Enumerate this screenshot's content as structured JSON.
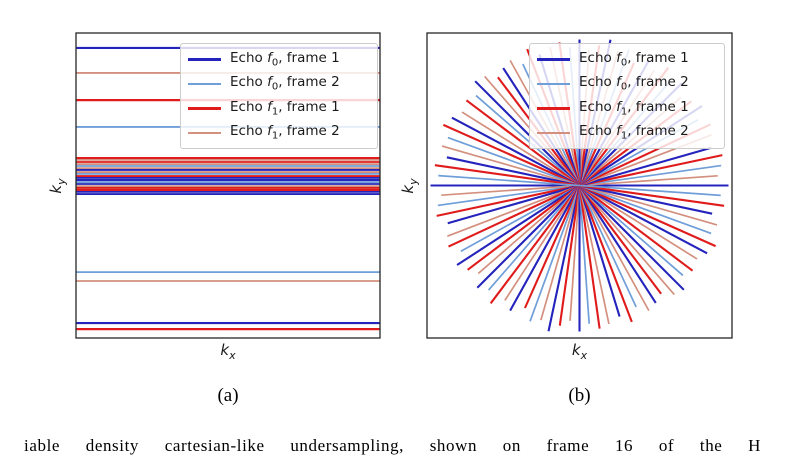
{
  "colors": {
    "echo0_frame1": "#2424bd",
    "echo0_frame2": "#6f9ed9",
    "echo1_frame1": "#e01b1b",
    "echo1_frame2": "#d4907e",
    "frame": "#262626"
  },
  "legend": {
    "entries": [
      {
        "prefix": "Echo ",
        "symbol": "f",
        "subscript": "0",
        "suffix": ", frame 1",
        "color_key": "echo0_frame1",
        "label_plain": "Echo f0, frame 1"
      },
      {
        "prefix": "Echo ",
        "symbol": "f",
        "subscript": "0",
        "suffix": ", frame 2",
        "color_key": "echo0_frame2",
        "label_plain": "Echo f0, frame 2"
      },
      {
        "prefix": "Echo ",
        "symbol": "f",
        "subscript": "1",
        "suffix": ", frame 1",
        "color_key": "echo1_frame1",
        "label_plain": "Echo f1, frame 1"
      },
      {
        "prefix": "Echo ",
        "symbol": "f",
        "subscript": "1",
        "suffix": ", frame 2",
        "color_key": "echo1_frame2",
        "label_plain": "Echo f1, frame 2"
      }
    ]
  },
  "panels": [
    {
      "caption": "(a)",
      "xlabel": {
        "base": "k",
        "sub": "x"
      },
      "ylabel": {
        "base": "k",
        "sub": "y"
      }
    },
    {
      "caption": "(b)",
      "xlabel": {
        "base": "k",
        "sub": "x"
      },
      "ylabel": {
        "base": "k",
        "sub": "y"
      }
    }
  ],
  "caption_fragment": "iable density cartesian-like undersampling, shown on frame 16 of the H",
  "chart_data": [
    {
      "type": "line",
      "panel": "(a)",
      "title": "",
      "xlabel": "kx",
      "ylabel": "ky",
      "description": "Variable-density Cartesian k-space sampling: horizontal phase-encode lines, densely packed near the ky center, for two echoes and two frames",
      "legend_position": "upper right",
      "grid": false,
      "lines": [
        {
          "y_frac": 0.049,
          "series": "echo0_frame1",
          "width": 2.2
        },
        {
          "y_frac": 0.131,
          "series": "echo1_frame2",
          "width": 1.8
        },
        {
          "y_frac": 0.22,
          "series": "echo1_frame1",
          "width": 2.2
        },
        {
          "y_frac": 0.308,
          "series": "echo0_frame2",
          "width": 1.8
        },
        {
          "y_frac": 0.41,
          "series": "echo1_frame1",
          "width": 2.2
        },
        {
          "y_frac": 0.416,
          "series": "echo1_frame2",
          "width": 1.8
        },
        {
          "y_frac": 0.423,
          "series": "echo1_frame1",
          "width": 1.8
        },
        {
          "y_frac": 0.43,
          "series": "echo1_frame2",
          "width": 1.8
        },
        {
          "y_frac": 0.436,
          "series": "echo0_frame2",
          "width": 1.8
        },
        {
          "y_frac": 0.443,
          "series": "echo1_frame2",
          "width": 1.8
        },
        {
          "y_frac": 0.449,
          "series": "echo0_frame1",
          "width": 1.8
        },
        {
          "y_frac": 0.456,
          "series": "echo1_frame2",
          "width": 1.8
        },
        {
          "y_frac": 0.462,
          "series": "echo0_frame2",
          "width": 1.8
        },
        {
          "y_frac": 0.469,
          "series": "echo1_frame1",
          "width": 1.8
        },
        {
          "y_frac": 0.475,
          "series": "echo0_frame1",
          "width": 1.8
        },
        {
          "y_frac": 0.482,
          "series": "echo0_frame1",
          "width": 2.2
        },
        {
          "y_frac": 0.489,
          "series": "echo0_frame2",
          "width": 1.8
        },
        {
          "y_frac": 0.495,
          "series": "echo0_frame1",
          "width": 1.8
        },
        {
          "y_frac": 0.502,
          "series": "echo1_frame2",
          "width": 1.8
        },
        {
          "y_frac": 0.508,
          "series": "echo1_frame1",
          "width": 1.8
        },
        {
          "y_frac": 0.515,
          "series": "echo1_frame1",
          "width": 2.2
        },
        {
          "y_frac": 0.521,
          "series": "echo0_frame1",
          "width": 1.8
        },
        {
          "y_frac": 0.528,
          "series": "echo0_frame1",
          "width": 1.8
        },
        {
          "y_frac": 0.784,
          "series": "echo0_frame2",
          "width": 1.8
        },
        {
          "y_frac": 0.813,
          "series": "echo1_frame2",
          "width": 1.8
        },
        {
          "y_frac": 0.951,
          "series": "echo0_frame1",
          "width": 2.2
        },
        {
          "y_frac": 0.971,
          "series": "echo1_frame1",
          "width": 2.2
        }
      ]
    },
    {
      "type": "line",
      "panel": "(b)",
      "title": "",
      "xlabel": "kx",
      "ylabel": "ky",
      "description": "Radial k-space sampling: spokes (diameters) through the k-space center at many angles, for two echoes and two frames",
      "legend_position": "upper right",
      "grid": false,
      "spokes": [
        {
          "angle_deg": 0,
          "radius_frac": 1.0,
          "series": "echo0_frame1",
          "width": 2.1
        },
        {
          "angle_deg": 4,
          "radius_frac": 0.93,
          "series": "echo1_frame2",
          "width": 1.7
        },
        {
          "angle_deg": 8,
          "radius_frac": 0.96,
          "series": "echo0_frame2",
          "width": 1.7
        },
        {
          "angle_deg": 12,
          "radius_frac": 0.98,
          "series": "echo1_frame1",
          "width": 2.1
        },
        {
          "angle_deg": 16,
          "radius_frac": 0.92,
          "series": "echo0_frame1",
          "width": 2.1
        },
        {
          "angle_deg": 21,
          "radius_frac": 0.95,
          "series": "echo1_frame2",
          "width": 1.7
        },
        {
          "angle_deg": 25,
          "radius_frac": 0.97,
          "series": "echo1_frame1",
          "width": 2.1
        },
        {
          "angle_deg": 29,
          "radius_frac": 0.91,
          "series": "echo0_frame2",
          "width": 1.7
        },
        {
          "angle_deg": 33,
          "radius_frac": 0.98,
          "series": "echo0_frame1",
          "width": 2.1
        },
        {
          "angle_deg": 37,
          "radius_frac": 0.94,
          "series": "echo1_frame1",
          "width": 2.1
        },
        {
          "angle_deg": 41,
          "radius_frac": 0.9,
          "series": "echo1_frame2",
          "width": 1.7
        },
        {
          "angle_deg": 45,
          "radius_frac": 0.97,
          "series": "echo0_frame1",
          "width": 2.1
        },
        {
          "angle_deg": 49,
          "radius_frac": 0.93,
          "series": "echo0_frame2",
          "width": 1.7
        },
        {
          "angle_deg": 53,
          "radius_frac": 0.99,
          "series": "echo1_frame1",
          "width": 2.1
        },
        {
          "angle_deg": 57,
          "radius_frac": 0.92,
          "series": "echo1_frame2",
          "width": 1.7
        },
        {
          "angle_deg": 61,
          "radius_frac": 0.96,
          "series": "echo0_frame1",
          "width": 2.1
        },
        {
          "angle_deg": 66,
          "radius_frac": 0.9,
          "series": "echo1_frame1",
          "width": 2.1
        },
        {
          "angle_deg": 70,
          "radius_frac": 0.97,
          "series": "echo0_frame2",
          "width": 1.7
        },
        {
          "angle_deg": 74,
          "radius_frac": 0.94,
          "series": "echo1_frame2",
          "width": 1.7
        },
        {
          "angle_deg": 78,
          "radius_frac": 1.0,
          "series": "echo0_frame1",
          "width": 2.1
        },
        {
          "angle_deg": 82,
          "radius_frac": 0.95,
          "series": "echo1_frame1",
          "width": 2.1
        },
        {
          "angle_deg": 86,
          "radius_frac": 0.91,
          "series": "echo1_frame2",
          "width": 1.7
        },
        {
          "angle_deg": 90,
          "radius_frac": 0.98,
          "series": "echo0_frame1",
          "width": 2.1
        },
        {
          "angle_deg": 94,
          "radius_frac": 0.93,
          "series": "echo0_frame2",
          "width": 1.7
        },
        {
          "angle_deg": 98,
          "radius_frac": 0.97,
          "series": "echo1_frame1",
          "width": 2.1
        },
        {
          "angle_deg": 102,
          "radius_frac": 0.95,
          "series": "echo1_frame2",
          "width": 1.7
        },
        {
          "angle_deg": 107,
          "radius_frac": 0.92,
          "series": "echo0_frame1",
          "width": 2.1
        },
        {
          "angle_deg": 111,
          "radius_frac": 0.98,
          "series": "echo1_frame1",
          "width": 2.1
        },
        {
          "angle_deg": 115,
          "radius_frac": 0.9,
          "series": "echo0_frame2",
          "width": 1.7
        },
        {
          "angle_deg": 119,
          "radius_frac": 0.96,
          "series": "echo1_frame2",
          "width": 1.7
        },
        {
          "angle_deg": 123,
          "radius_frac": 0.94,
          "series": "echo0_frame1",
          "width": 2.1
        },
        {
          "angle_deg": 127,
          "radius_frac": 0.91,
          "series": "echo1_frame1",
          "width": 2.1
        },
        {
          "angle_deg": 131,
          "radius_frac": 0.97,
          "series": "echo1_frame2",
          "width": 1.7
        },
        {
          "angle_deg": 135,
          "radius_frac": 0.99,
          "series": "echo0_frame1",
          "width": 2.1
        },
        {
          "angle_deg": 139,
          "radius_frac": 0.92,
          "series": "echo0_frame2",
          "width": 1.7
        },
        {
          "angle_deg": 143,
          "radius_frac": 0.95,
          "series": "echo1_frame1",
          "width": 2.1
        },
        {
          "angle_deg": 148,
          "radius_frac": 0.93,
          "series": "echo1_frame2",
          "width": 1.7
        },
        {
          "angle_deg": 152,
          "radius_frac": 0.97,
          "series": "echo0_frame1",
          "width": 2.1
        },
        {
          "angle_deg": 156,
          "radius_frac": 1.0,
          "series": "echo1_frame1",
          "width": 2.1
        },
        {
          "angle_deg": 160,
          "radius_frac": 0.94,
          "series": "echo0_frame2",
          "width": 1.7
        },
        {
          "angle_deg": 164,
          "radius_frac": 0.96,
          "series": "echo1_frame2",
          "width": 1.7
        },
        {
          "angle_deg": 168,
          "radius_frac": 0.91,
          "series": "echo0_frame1",
          "width": 2.1
        },
        {
          "angle_deg": 172,
          "radius_frac": 0.98,
          "series": "echo1_frame1",
          "width": 2.1
        },
        {
          "angle_deg": 176,
          "radius_frac": 0.95,
          "series": "echo0_frame2",
          "width": 1.7
        }
      ]
    }
  ]
}
